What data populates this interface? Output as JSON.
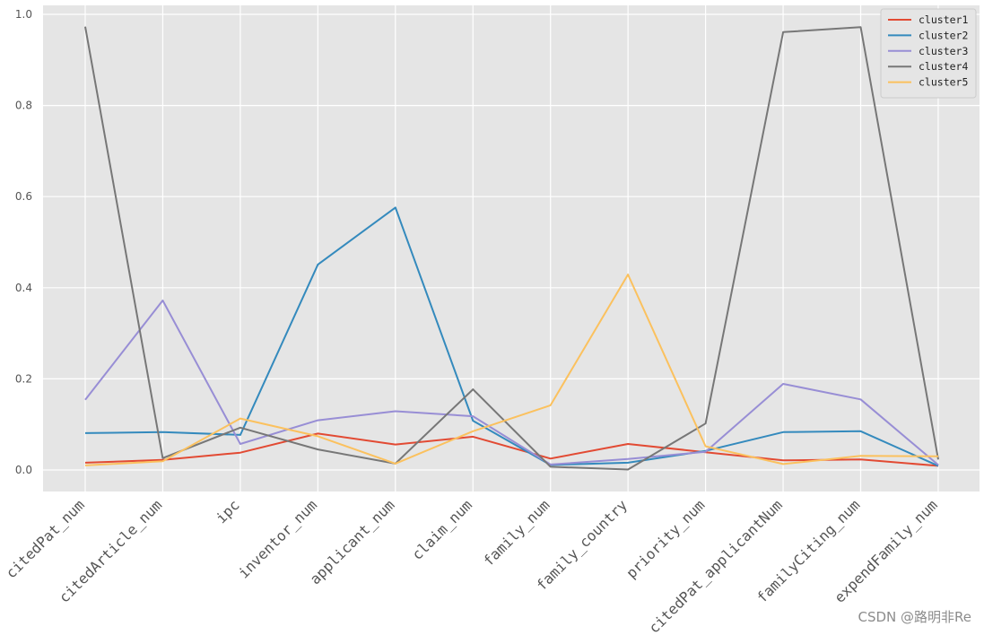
{
  "chart_data": {
    "type": "line",
    "title": "",
    "xlabel": "",
    "ylabel": "",
    "categories": [
      "citedPat_num",
      "citedArticle_num",
      "ipc",
      "inventor_num",
      "applicant_num",
      "claim_num",
      "family_num",
      "family_country",
      "priority_num",
      "citedPat_applicantNum",
      "familyCiting_num",
      "expendFamily_num"
    ],
    "ylim": [
      -0.045,
      1.0
    ],
    "yticks": [
      0.0,
      0.2,
      0.4,
      0.6,
      0.8,
      1.0
    ],
    "ytick_labels": [
      "0.0",
      "0.2",
      "0.4",
      "0.6",
      "0.8",
      "1.0"
    ],
    "grid": true,
    "legend_position": "top-right",
    "series": [
      {
        "name": "cluster1",
        "color": "#E24A33",
        "values": [
          0.016,
          0.022,
          0.038,
          0.08,
          0.056,
          0.073,
          0.025,
          0.057,
          0.039,
          0.021,
          0.023,
          0.009
        ]
      },
      {
        "name": "cluster2",
        "color": "#348ABD",
        "values": [
          0.081,
          0.083,
          0.077,
          0.451,
          0.576,
          0.108,
          0.011,
          0.016,
          0.042,
          0.083,
          0.085,
          0.009
        ]
      },
      {
        "name": "cluster3",
        "color": "#988ED5",
        "values": [
          0.154,
          0.372,
          0.057,
          0.109,
          0.129,
          0.118,
          0.012,
          0.024,
          0.04,
          0.189,
          0.155,
          0.011
        ]
      },
      {
        "name": "cluster4",
        "color": "#777777",
        "values": [
          0.973,
          0.026,
          0.093,
          0.045,
          0.014,
          0.177,
          0.007,
          0.001,
          0.102,
          0.961,
          0.972,
          0.023
        ]
      },
      {
        "name": "cluster5",
        "color": "#FBC15E",
        "values": [
          0.01,
          0.019,
          0.113,
          0.074,
          0.014,
          0.085,
          0.142,
          0.429,
          0.052,
          0.013,
          0.031,
          0.03
        ]
      }
    ]
  },
  "watermark": "CSDN @路明非Re"
}
